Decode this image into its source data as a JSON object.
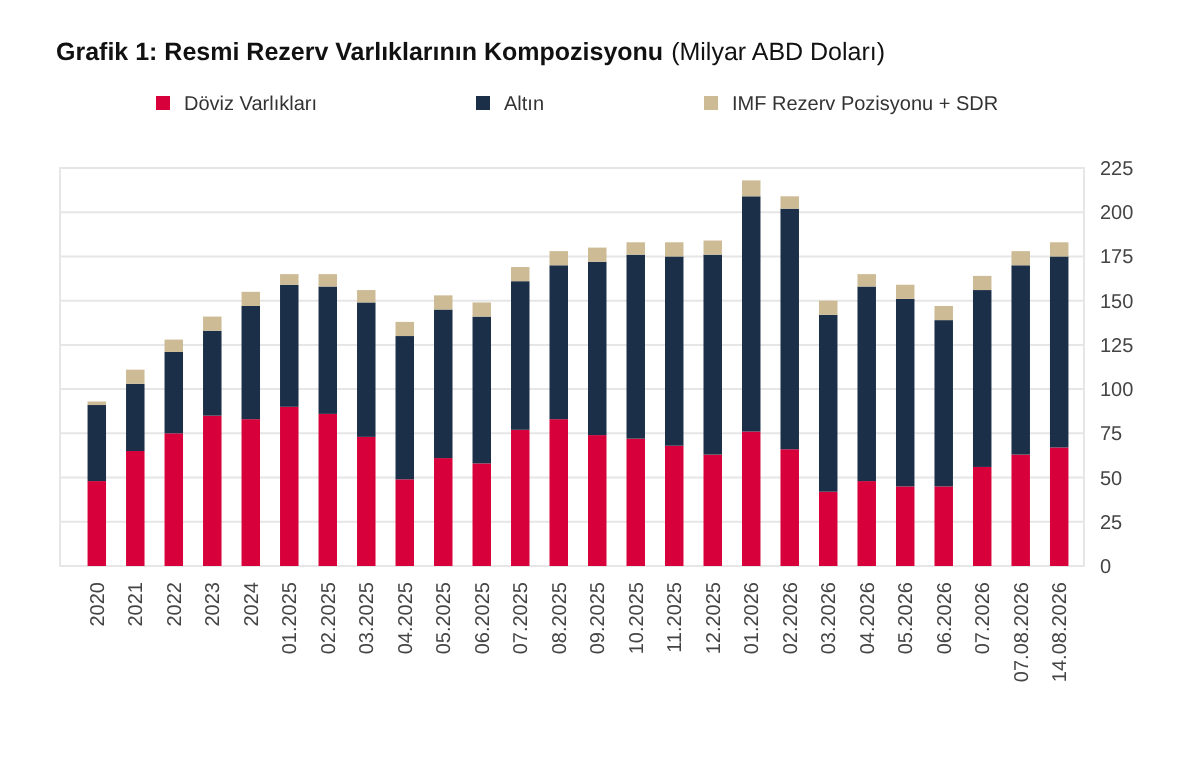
{
  "chart_data": {
    "type": "bar",
    "title": "Grafik 1: Resmi Rezerv Varlıklarının Kompozisyonu",
    "subtitle": "(Milyar ABD Doları)",
    "stacked": true,
    "legend": "top",
    "grid": "y",
    "categories": [
      "2020",
      "2021",
      "2022",
      "2023",
      "2024",
      "01.2025",
      "02.2025",
      "03.2025",
      "04.2025",
      "05.2025",
      "06.2025",
      "07.2025",
      "08.2025",
      "09.2025",
      "10.2025",
      "11.2025",
      "12.2025",
      "01.2026",
      "02.2026",
      "03.2026",
      "04.2026",
      "05.2026",
      "06.2026",
      "07.2026",
      "07.08.2026",
      "14.08.2026"
    ],
    "series": [
      {
        "name": "Döviz Varlıkları",
        "color": "#d7003a",
        "values": [
          48,
          65,
          75,
          85,
          83,
          90,
          86,
          73,
          49,
          61,
          58,
          77,
          83,
          74,
          72,
          68,
          63,
          76,
          66,
          42,
          48,
          45,
          45,
          56,
          63,
          67
        ]
      },
      {
        "name": "Altın",
        "color": "#1b2f48",
        "values": [
          43,
          38,
          46,
          48,
          64,
          69,
          72,
          76,
          81,
          84,
          83,
          84,
          87,
          98,
          104,
          107,
          113,
          133,
          136,
          100,
          110,
          106,
          94,
          100,
          107,
          108
        ]
      },
      {
        "name": "IMF Rezerv Pozisyonu + SDR",
        "color": "#cdbb95",
        "values": [
          2,
          8,
          7,
          8,
          8,
          6,
          7,
          7,
          8,
          8,
          8,
          8,
          8,
          8,
          7,
          8,
          8,
          9,
          7,
          8,
          7,
          8,
          8,
          8,
          8,
          8
        ]
      }
    ],
    "ylim": [
      0,
      225
    ],
    "yticks": [
      0,
      25,
      50,
      75,
      100,
      125,
      150,
      175,
      200,
      225
    ]
  }
}
